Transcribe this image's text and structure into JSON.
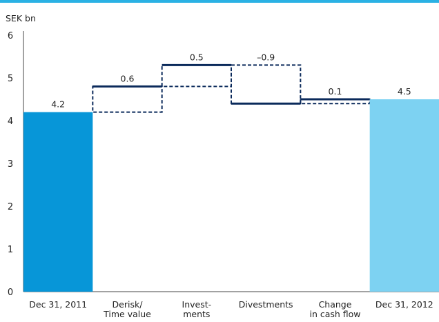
{
  "chart_data": {
    "type": "bar",
    "subtype": "waterfall",
    "unit_label": "SEK bn",
    "ylim": [
      0,
      6
    ],
    "yticks": [
      "0",
      "1",
      "2",
      "3",
      "4",
      "5",
      "6"
    ],
    "categories": [
      [
        "Dec 31,  2011"
      ],
      [
        "Derisk/",
        "Time value"
      ],
      [
        "Invest-",
        "ments"
      ],
      [
        "Divestments"
      ],
      [
        "Change",
        "in cash flow"
      ],
      [
        "Dec 31, 2012"
      ]
    ],
    "values": [
      4.2,
      0.6,
      0.5,
      -0.9,
      0.1,
      4.5
    ],
    "value_labels": [
      "4.2",
      "0.6",
      "0.5",
      "–0.9",
      "0.1",
      "4.5"
    ],
    "step_kinds": [
      "total",
      "change",
      "change",
      "change",
      "change",
      "total"
    ],
    "grid": false,
    "colors": {
      "start_total": "#0796d8",
      "end_total": "#7dd2f2",
      "change_line": "#0b2a5b",
      "top_rule": "#2ab1e4"
    }
  }
}
